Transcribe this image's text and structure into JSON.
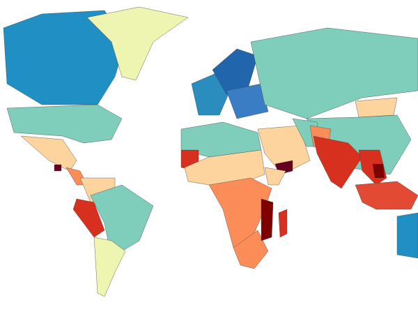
{
  "regions": [
    {
      "color": "#1f8fc4"
    },
    {
      "color": "#eef5b0"
    },
    {
      "color": "#7fcdbb"
    },
    {
      "color": "#fdd49e"
    },
    {
      "color": "#fc8d59"
    },
    {
      "color": "#67001f"
    },
    {
      "color": "#fdd49e"
    },
    {
      "color": "#d7301f"
    },
    {
      "color": "#7fcdbb"
    },
    {
      "color": "#eef5b0"
    },
    {
      "color": "#2b8cbe"
    },
    {
      "color": "#2166ac"
    },
    {
      "color": "#3a7dc4"
    },
    {
      "color": "#7fcdbb"
    },
    {
      "color": "#fdd49e"
    },
    {
      "color": "#7fcdbb"
    },
    {
      "color": "#fdd49e"
    },
    {
      "color": "#7fcdbb"
    },
    {
      "color": "#fc8d59"
    },
    {
      "color": "#d7301f"
    },
    {
      "color": "#d7301f"
    },
    {
      "color": "#7f0000"
    },
    {
      "color": "#e34a33"
    },
    {
      "color": "#1f8fc4"
    },
    {
      "color": "#67001f"
    },
    {
      "color": "#7fcdbb"
    },
    {
      "color": "#d7301f"
    },
    {
      "color": "#fdd49e"
    },
    {
      "color": "#fc8d59"
    },
    {
      "color": "#fc8d59"
    },
    {
      "color": "#7f0000"
    },
    {
      "color": "#d7301f"
    },
    {
      "color": "#fdd49e"
    }
  ]
}
